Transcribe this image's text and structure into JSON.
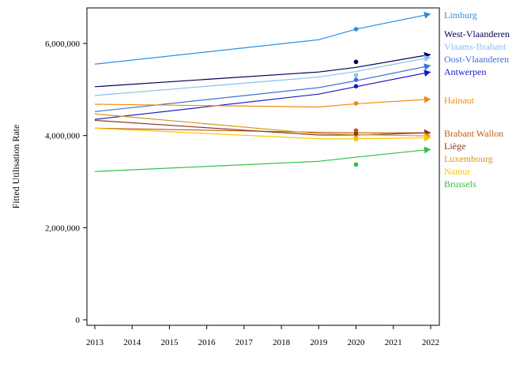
{
  "chart_data": {
    "type": "line",
    "title": "",
    "xlabel": "",
    "ylabel": "Fitted Utilisation Rate",
    "xlim": [
      2013,
      2022
    ],
    "ylim": [
      0,
      6800000
    ],
    "x_ticks": [
      2013,
      2014,
      2015,
      2016,
      2017,
      2018,
      2019,
      2020,
      2021,
      2022
    ],
    "y_ticks": [
      0,
      2000000,
      4000000,
      6000000
    ],
    "y_tick_labels": [
      "0",
      "2,000,000",
      "4,000,000",
      "6,000,000"
    ],
    "grid": false,
    "legend_position": "right",
    "x": [
      2013,
      2019,
      2020,
      2022
    ],
    "series": [
      {
        "name": "Limburg",
        "color": "#2b8fe0",
        "values": [
          5550000,
          6080000,
          6310000,
          6640000
        ],
        "observed_2020": 6310000
      },
      {
        "name": "West-Vlaanderen",
        "color": "#00005a",
        "values": [
          5060000,
          5380000,
          5480000,
          5760000
        ],
        "observed_2020": 5600000
      },
      {
        "name": "Vlaams-Brabant",
        "color": "#88c2f0",
        "values": [
          4870000,
          5270000,
          5390000,
          5700000
        ],
        "observed_2020": 5310000
      },
      {
        "name": "Oost-Vlaanderen",
        "color": "#3e70d8",
        "values": [
          4520000,
          5040000,
          5190000,
          5520000
        ],
        "observed_2020": 5210000
      },
      {
        "name": "Antwerpen",
        "color": "#1a1ac8",
        "values": [
          4350000,
          4900000,
          5060000,
          5380000
        ],
        "observed_2020": 5070000
      },
      {
        "name": "Hainaut",
        "color": "#f08a10",
        "values": [
          4680000,
          4620000,
          4690000,
          4790000
        ],
        "observed_2020": 4700000
      },
      {
        "name": "Brabant Wallon",
        "color": "#c05a14",
        "values": [
          4160000,
          4070000,
          4060000,
          4060000
        ],
        "observed_2020": 4110000
      },
      {
        "name": "Liège",
        "color": "#8a3a20",
        "values": [
          4330000,
          4010000,
          4010000,
          4060000
        ],
        "observed_2020": 4040000
      },
      {
        "name": "Luxembourg",
        "color": "#d49818",
        "values": [
          4470000,
          4040000,
          4020000,
          3990000
        ],
        "observed_2020": 3950000
      },
      {
        "name": "Namur",
        "color": "#f4c800",
        "values": [
          4160000,
          3930000,
          3930000,
          3950000
        ],
        "observed_2020": 3920000
      },
      {
        "name": "Brussels",
        "color": "#30c040",
        "values": [
          3220000,
          3440000,
          3530000,
          3700000
        ],
        "observed_2020": 3370000
      }
    ]
  }
}
